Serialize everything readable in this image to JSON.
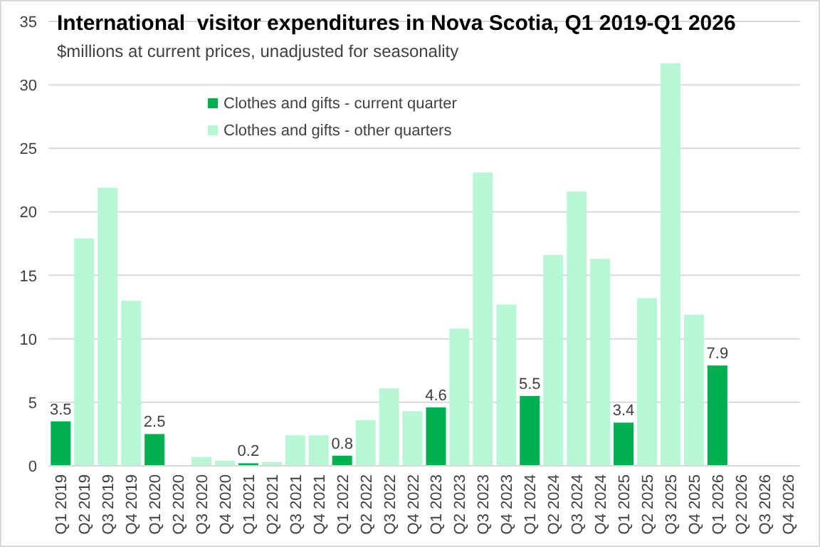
{
  "chart_data": {
    "type": "bar",
    "title": "International  visitor expenditures in Nova Scotia, Q1 2019-Q1 2026",
    "subtitle": "$millions at current prices, unadjusted for seasonality",
    "categories": [
      "Q1 2019",
      "Q2 2019",
      "Q3 2019",
      "Q4 2019",
      "Q1 2020",
      "Q2 2020",
      "Q3 2020",
      "Q4 2020",
      "Q1 2021",
      "Q2 2021",
      "Q3 2021",
      "Q4 2021",
      "Q1 2022",
      "Q2 2022",
      "Q3 2022",
      "Q4 2022",
      "Q1 2023",
      "Q2 2023",
      "Q3 2023",
      "Q4 2023",
      "Q1 2024",
      "Q2 2024",
      "Q3 2024",
      "Q4 2024",
      "Q1 2025",
      "Q2 2025",
      "Q3 2025",
      "Q4 2025",
      "Q1 2026",
      "Q2 2026",
      "Q3 2026",
      "Q4 2026"
    ],
    "series": [
      {
        "name": "Clothes and gifts - current quarter",
        "color": "#00b050",
        "values": [
          3.5,
          null,
          null,
          null,
          2.5,
          null,
          null,
          null,
          0.2,
          null,
          null,
          null,
          0.8,
          null,
          null,
          null,
          4.6,
          null,
          null,
          null,
          5.5,
          null,
          null,
          null,
          3.4,
          null,
          null,
          null,
          7.9,
          null,
          null,
          null
        ],
        "value_labels": [
          "3.5",
          null,
          null,
          null,
          "2.5",
          null,
          null,
          null,
          "0.2",
          null,
          null,
          null,
          "0.8",
          null,
          null,
          null,
          "4.6",
          null,
          null,
          null,
          "5.5",
          null,
          null,
          null,
          "3.4",
          null,
          null,
          null,
          "7.9",
          null,
          null,
          null
        ]
      },
      {
        "name": "Clothes and gifts - other quarters",
        "color": "#b7f7d5",
        "values": [
          null,
          17.9,
          21.9,
          13.0,
          null,
          0,
          0.7,
          0.4,
          null,
          0.3,
          2.4,
          2.4,
          null,
          3.6,
          6.1,
          4.3,
          null,
          10.8,
          23.1,
          12.7,
          null,
          16.6,
          21.6,
          16.3,
          null,
          13.2,
          31.7,
          11.9,
          null,
          null,
          null,
          null
        ]
      }
    ],
    "ylim": [
      0,
      35
    ],
    "yticks": [
      0,
      5,
      10,
      15,
      20,
      25,
      30,
      35
    ],
    "grid": "y",
    "legend": "top"
  }
}
